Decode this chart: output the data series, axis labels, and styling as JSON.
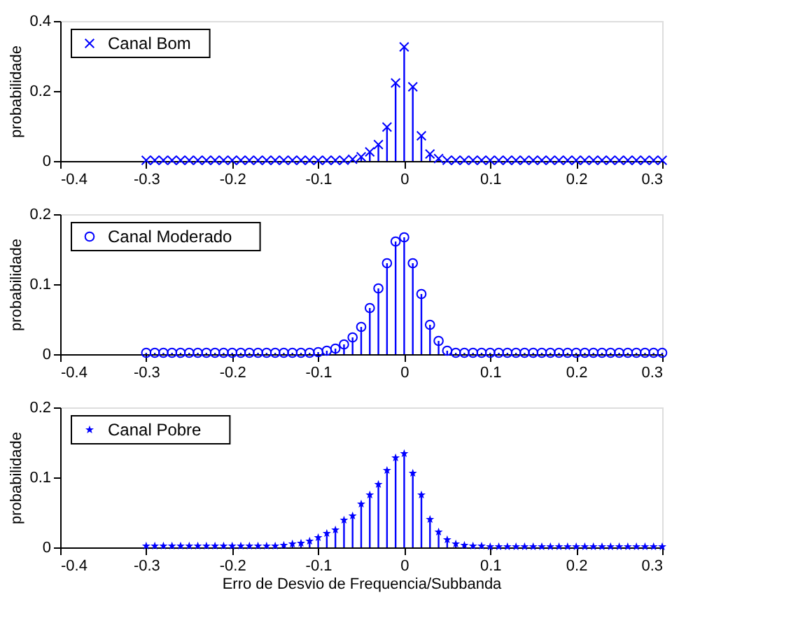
{
  "chart_data": [
    {
      "type": "lollipop",
      "x": [
        -0.3,
        -0.29,
        -0.28,
        -0.27,
        -0.26,
        -0.25,
        -0.24,
        -0.23,
        -0.22,
        -0.21,
        -0.2,
        -0.19,
        -0.18,
        -0.17,
        -0.16,
        -0.15,
        -0.14,
        -0.13,
        -0.12,
        -0.11,
        -0.1,
        -0.09,
        -0.08,
        -0.07,
        -0.06,
        -0.05,
        -0.04,
        -0.03,
        -0.02,
        -0.01,
        0,
        0.01,
        0.02,
        0.03,
        0.04,
        0.05,
        0.06,
        0.07,
        0.08,
        0.09,
        0.1,
        0.11,
        0.12,
        0.13,
        0.14,
        0.15,
        0.16,
        0.17,
        0.18,
        0.19,
        0.2,
        0.21,
        0.22,
        0.23,
        0.24,
        0.25,
        0.26,
        0.27,
        0.28,
        0.29,
        0.3
      ],
      "series": [
        {
          "name": "Canal Bom",
          "color": "#0000ff",
          "values": [
            0.002,
            0.002,
            0.002,
            0.002,
            0.002,
            0.002,
            0.002,
            0.002,
            0.002,
            0.002,
            0.002,
            0.002,
            0.002,
            0.002,
            0.002,
            0.002,
            0.002,
            0.002,
            0.002,
            0.002,
            0.002,
            0.002,
            0.002,
            0.002,
            0.005,
            0.012,
            0.026,
            0.047,
            0.097,
            0.223,
            0.326,
            0.212,
            0.072,
            0.02,
            0.007,
            0.002,
            0.002,
            0.002,
            0.002,
            0.002,
            0.002,
            0.002,
            0.002,
            0.002,
            0.002,
            0.002,
            0.002,
            0.002,
            0.002,
            0.002,
            0.002,
            0.002,
            0.002,
            0.002,
            0.002,
            0.002,
            0.002,
            0.002,
            0.002,
            0.002,
            0.002
          ]
        }
      ],
      "marker": "cross",
      "ylabel": "probabilidade",
      "xlim": [
        -0.4,
        0.3
      ],
      "xticks": [
        -0.4,
        -0.3,
        -0.2,
        -0.1,
        0,
        0.1,
        0.2,
        0.3
      ],
      "ylim": [
        0,
        0.4
      ],
      "yticks": [
        0,
        0.2,
        0.4
      ],
      "legend": "top left",
      "grid": false
    },
    {
      "type": "lollipop",
      "x": [
        -0.3,
        -0.29,
        -0.28,
        -0.27,
        -0.26,
        -0.25,
        -0.24,
        -0.23,
        -0.22,
        -0.21,
        -0.2,
        -0.19,
        -0.18,
        -0.17,
        -0.16,
        -0.15,
        -0.14,
        -0.13,
        -0.12,
        -0.11,
        -0.1,
        -0.09,
        -0.08,
        -0.07,
        -0.06,
        -0.05,
        -0.04,
        -0.03,
        -0.02,
        -0.01,
        0,
        0.01,
        0.02,
        0.03,
        0.04,
        0.05,
        0.06,
        0.07,
        0.08,
        0.09,
        0.1,
        0.11,
        0.12,
        0.13,
        0.14,
        0.15,
        0.16,
        0.17,
        0.18,
        0.19,
        0.2,
        0.21,
        0.22,
        0.23,
        0.24,
        0.25,
        0.26,
        0.27,
        0.28,
        0.29,
        0.3
      ],
      "series": [
        {
          "name": "Canal Moderado",
          "color": "#0000ff",
          "values": [
            0.002,
            0.002,
            0.002,
            0.002,
            0.002,
            0.002,
            0.002,
            0.002,
            0.002,
            0.002,
            0.002,
            0.002,
            0.002,
            0.002,
            0.002,
            0.002,
            0.002,
            0.002,
            0.002,
            0.002,
            0.003,
            0.005,
            0.008,
            0.014,
            0.024,
            0.039,
            0.066,
            0.094,
            0.13,
            0.161,
            0.167,
            0.13,
            0.086,
            0.042,
            0.019,
            0.005,
            0.002,
            0.002,
            0.002,
            0.002,
            0.002,
            0.002,
            0.002,
            0.002,
            0.002,
            0.002,
            0.002,
            0.002,
            0.002,
            0.002,
            0.002,
            0.002,
            0.002,
            0.002,
            0.002,
            0.002,
            0.002,
            0.002,
            0.002,
            0.002,
            0.002
          ]
        }
      ],
      "marker": "circle",
      "ylabel": "probabilidade",
      "xlim": [
        -0.4,
        0.3
      ],
      "xticks": [
        -0.4,
        -0.3,
        -0.2,
        -0.1,
        0,
        0.1,
        0.2,
        0.3
      ],
      "ylim": [
        0,
        0.2
      ],
      "yticks": [
        0,
        0.1,
        0.2
      ],
      "legend": "top left",
      "grid": false
    },
    {
      "type": "lollipop",
      "x": [
        -0.3,
        -0.29,
        -0.28,
        -0.27,
        -0.26,
        -0.25,
        -0.24,
        -0.23,
        -0.22,
        -0.21,
        -0.2,
        -0.19,
        -0.18,
        -0.17,
        -0.16,
        -0.15,
        -0.14,
        -0.13,
        -0.12,
        -0.11,
        -0.1,
        -0.09,
        -0.08,
        -0.07,
        -0.06,
        -0.05,
        -0.04,
        -0.03,
        -0.02,
        -0.01,
        0,
        0.01,
        0.02,
        0.03,
        0.04,
        0.05,
        0.06,
        0.07,
        0.08,
        0.09,
        0.1,
        0.11,
        0.12,
        0.13,
        0.14,
        0.15,
        0.16,
        0.17,
        0.18,
        0.19,
        0.2,
        0.21,
        0.22,
        0.23,
        0.24,
        0.25,
        0.26,
        0.27,
        0.28,
        0.29,
        0.3
      ],
      "series": [
        {
          "name": "Canal Pobre",
          "color": "#0000ff",
          "values": [
            0.002,
            0.002,
            0.002,
            0.002,
            0.002,
            0.002,
            0.002,
            0.002,
            0.002,
            0.002,
            0.002,
            0.002,
            0.002,
            0.002,
            0.002,
            0.002,
            0.003,
            0.005,
            0.006,
            0.009,
            0.014,
            0.02,
            0.025,
            0.039,
            0.045,
            0.062,
            0.075,
            0.09,
            0.11,
            0.128,
            0.134,
            0.106,
            0.075,
            0.04,
            0.022,
            0.011,
            0.005,
            0.003,
            0.002,
            0.002,
            0.001,
            0.001,
            0.001,
            0.001,
            0.001,
            0.001,
            0.001,
            0.001,
            0.001,
            0.001,
            0.001,
            0.001,
            0.001,
            0.001,
            0.001,
            0.001,
            0.001,
            0.001,
            0.001,
            0.001,
            0.001
          ]
        }
      ],
      "marker": "star",
      "ylabel": "probabilidade",
      "xlabel": "Erro de Desvio de Frequencia/Subbanda",
      "xlim": [
        -0.4,
        0.3
      ],
      "xticks": [
        -0.4,
        -0.3,
        -0.2,
        -0.1,
        0,
        0.1,
        0.2,
        0.3
      ],
      "ylim": [
        0,
        0.2
      ],
      "yticks": [
        0,
        0.1,
        0.2
      ],
      "legend": "top left",
      "grid": false
    }
  ]
}
